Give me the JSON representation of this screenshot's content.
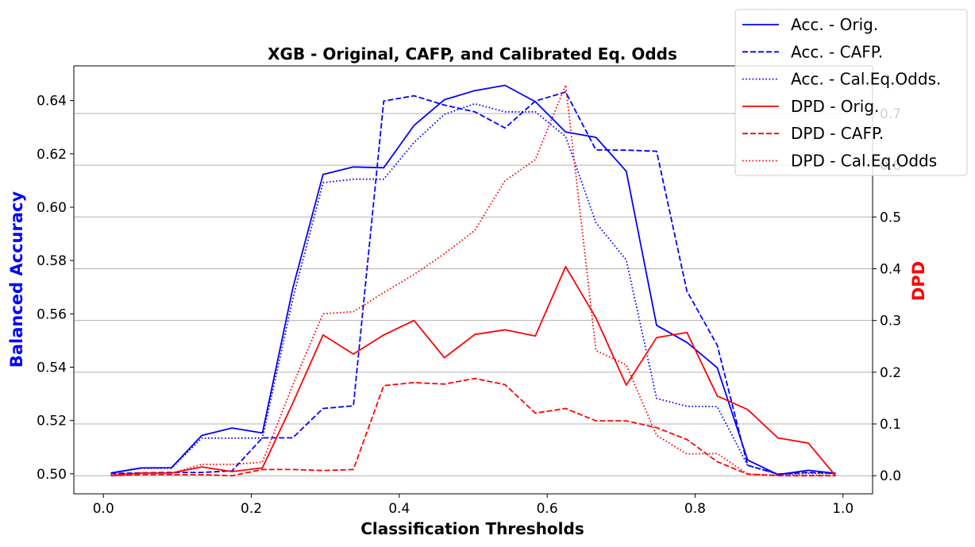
{
  "chart_data": {
    "type": "line",
    "title": "XGB - Original, CAFP, and Calibrated Eq. Odds",
    "xlabel": "Classification Thresholds",
    "ylabel_left": "Balanced Accuracy",
    "ylabel_right": "DPD",
    "xlim": [
      -0.04,
      1.04
    ],
    "ylim_left": [
      0.4925,
      0.653
    ],
    "ylim_right": [
      -0.035,
      0.792
    ],
    "xticks": [
      0.0,
      0.2,
      0.4,
      0.6,
      0.8,
      1.0
    ],
    "xtick_labels": [
      "0.0",
      "0.2",
      "0.4",
      "0.6",
      "0.8",
      "1.0"
    ],
    "yticks_left": [
      0.5,
      0.52,
      0.54,
      0.56,
      0.58,
      0.6,
      0.62,
      0.64
    ],
    "ytick_labels_left": [
      "0.50",
      "0.52",
      "0.54",
      "0.56",
      "0.58",
      "0.60",
      "0.62",
      "0.64"
    ],
    "yticks_right": [
      0.0,
      0.1,
      0.2,
      0.3,
      0.4,
      0.5,
      0.6,
      0.7
    ],
    "ytick_labels_right": [
      "0.0",
      "0.1",
      "0.2",
      "0.3",
      "0.4",
      "0.5",
      "0.6",
      "0.7"
    ],
    "grid": "horizontal (right axis)",
    "legend_position": "top-right",
    "x": [
      0.01,
      0.051,
      0.092,
      0.133,
      0.174,
      0.215,
      0.256,
      0.297,
      0.338,
      0.379,
      0.42,
      0.461,
      0.502,
      0.543,
      0.584,
      0.625,
      0.666,
      0.707,
      0.748,
      0.789,
      0.83,
      0.871,
      0.912,
      0.953,
      0.99
    ],
    "series": [
      {
        "name": "Acc. - Orig.",
        "axis": "left",
        "color": "#0000ff",
        "dash": "solid",
        "values": [
          0.5003,
          0.5022,
          0.5023,
          0.5144,
          0.5172,
          0.5153,
          0.5695,
          0.6123,
          0.6151,
          0.6148,
          0.6307,
          0.6403,
          0.6437,
          0.6457,
          0.6396,
          0.6282,
          0.6262,
          0.6135,
          0.5557,
          0.5493,
          0.5398,
          0.5052,
          0.4997,
          0.5013,
          0.5002
        ]
      },
      {
        "name": "Acc. - CAFP.",
        "axis": "left",
        "color": "#0000ff",
        "dash": "dashed",
        "values": [
          0.5001,
          0.5004,
          0.5005,
          0.5005,
          0.5011,
          0.5135,
          0.5135,
          0.5245,
          0.5255,
          0.6398,
          0.6418,
          0.6383,
          0.6358,
          0.6297,
          0.6398,
          0.6432,
          0.6215,
          0.6214,
          0.621,
          0.5685,
          0.5482,
          0.5032,
          0.4999,
          0.5005,
          0.5002
        ]
      },
      {
        "name": "Acc. - Cal.Eq.Odds.",
        "axis": "left",
        "color": "#0000ff",
        "dash": "dotted",
        "values": [
          0.5002,
          0.5021,
          0.5021,
          0.5134,
          0.5134,
          0.5134,
          0.5655,
          0.6092,
          0.6105,
          0.6105,
          0.6243,
          0.6348,
          0.6388,
          0.6358,
          0.6358,
          0.6265,
          0.5942,
          0.5802,
          0.5283,
          0.5253,
          0.5252,
          0.5032,
          0.4998,
          0.5002,
          0.5002
        ]
      },
      {
        "name": "DPD - Orig.",
        "axis": "right",
        "color": "#ff0000",
        "dash": "solid",
        "values": [
          0.0,
          0.005,
          0.005,
          0.017,
          0.008,
          0.015,
          0.14,
          0.272,
          0.235,
          0.272,
          0.3,
          0.228,
          0.273,
          0.282,
          0.27,
          0.404,
          0.305,
          0.175,
          0.267,
          0.277,
          0.154,
          0.128,
          0.073,
          0.063,
          0.0
        ]
      },
      {
        "name": "DPD - CAFP.",
        "axis": "right",
        "color": "#ff0000",
        "dash": "dashed",
        "values": [
          0.0,
          0.002,
          0.002,
          0.002,
          0.0,
          0.012,
          0.012,
          0.01,
          0.012,
          0.174,
          0.18,
          0.177,
          0.188,
          0.176,
          0.121,
          0.13,
          0.106,
          0.106,
          0.093,
          0.07,
          0.027,
          0.003,
          0.0,
          0.0,
          0.0
        ]
      },
      {
        "name": "DPD - Cal.Eq.Odds",
        "axis": "right",
        "color": "#ff0000",
        "dash": "dotted",
        "values": [
          0.002,
          0.005,
          0.005,
          0.022,
          0.022,
          0.026,
          0.175,
          0.313,
          0.317,
          0.354,
          0.389,
          0.429,
          0.474,
          0.57,
          0.611,
          0.755,
          0.242,
          0.214,
          0.078,
          0.042,
          0.043,
          0.003,
          0.001,
          0.001,
          0.001
        ]
      }
    ]
  }
}
